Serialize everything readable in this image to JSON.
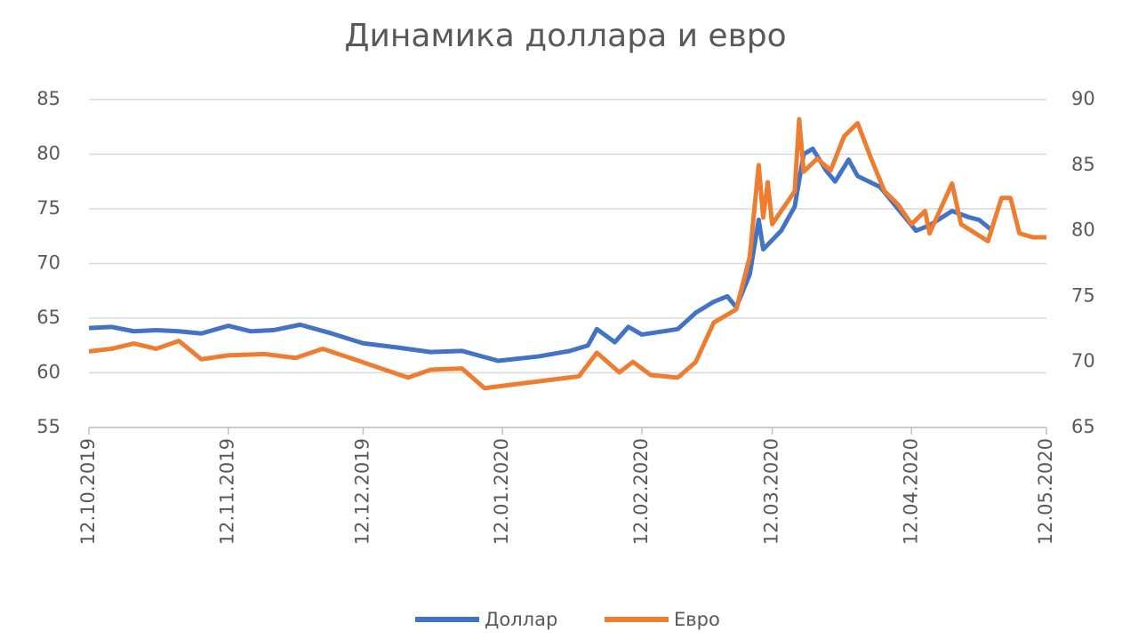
{
  "chart_data": {
    "type": "line",
    "title": "Динамика доллара и евро",
    "xlim": [
      "12.10.2019",
      "12.05.2020"
    ],
    "xticks": [
      "12.10.2019",
      "12.11.2019",
      "12.12.2019",
      "12.01.2020",
      "12.02.2020",
      "12.03.2020",
      "12.04.2020",
      "12.05.2020"
    ],
    "ylim": [
      55,
      85
    ],
    "yticks": [
      55,
      60,
      65,
      70,
      75,
      80,
      85
    ],
    "y2lim": [
      65,
      90
    ],
    "y2ticks": [
      65,
      70,
      75,
      80,
      85,
      90
    ],
    "grid": true,
    "legend": "bottom",
    "series": [
      {
        "name": "Доллар",
        "color": "#4472c4",
        "axis": "y",
        "x": [
          "12.10.2019",
          "17.10.2019",
          "22.10.2019",
          "27.10.2019",
          "01.11.2019",
          "06.11.2019",
          "12.11.2019",
          "17.11.2019",
          "22.11.2019",
          "28.11.2019",
          "05.12.2019",
          "12.12.2019",
          "20.12.2019",
          "27.12.2019",
          "03.01.2020",
          "11.01.2020",
          "20.01.2020",
          "27.01.2020",
          "31.01.2020",
          "02.02.2020",
          "06.02.2020",
          "09.02.2020",
          "12.02.2020",
          "20.02.2020",
          "24.02.2020",
          "28.02.2020",
          "02.03.2020",
          "04.03.2020",
          "07.03.2020",
          "09.03.2020",
          "10.03.2020",
          "14.03.2020",
          "17.03.2020",
          "19.03.2020",
          "21.03.2020",
          "24.03.2020",
          "26.03.2020",
          "29.03.2020",
          "31.03.2020",
          "05.04.2020",
          "09.04.2020",
          "13.04.2020",
          "16.04.2020",
          "21.04.2020",
          "25.04.2020",
          "27.04.2020",
          "30.04.2020"
        ],
        "values": [
          64.1,
          64.2,
          63.8,
          63.9,
          63.8,
          63.6,
          64.3,
          63.8,
          63.9,
          64.4,
          63.6,
          62.7,
          62.3,
          61.9,
          62.0,
          61.1,
          61.5,
          62.0,
          62.5,
          64.0,
          62.8,
          64.2,
          63.5,
          64.0,
          65.5,
          66.5,
          67.0,
          66.0,
          69.0,
          74.0,
          71.3,
          73.0,
          75.2,
          80.0,
          80.5,
          78.5,
          77.5,
          79.5,
          78.0,
          77.0,
          75.0,
          73.0,
          73.5,
          74.8,
          74.2,
          74.0,
          73.0
        ]
      },
      {
        "name": "Евро",
        "color": "#ed7d31",
        "axis": "y2",
        "x": [
          "12.10.2019",
          "17.10.2019",
          "22.10.2019",
          "27.10.2019",
          "01.11.2019",
          "06.11.2019",
          "12.11.2019",
          "20.11.2019",
          "27.11.2019",
          "03.12.2019",
          "10.12.2019",
          "16.12.2019",
          "22.12.2019",
          "27.12.2019",
          "03.01.2020",
          "08.01.2020",
          "15.01.2020",
          "22.01.2020",
          "29.01.2020",
          "02.02.2020",
          "07.02.2020",
          "10.02.2020",
          "14.02.2020",
          "20.02.2020",
          "24.02.2020",
          "28.02.2020",
          "04.03.2020",
          "07.03.2020",
          "09.03.2020",
          "10.03.2020",
          "11.03.2020",
          "12.03.2020",
          "15.03.2020",
          "17.03.2020",
          "18.03.2020",
          "19.03.2020",
          "22.03.2020",
          "25.03.2020",
          "28.03.2020",
          "31.03.2020",
          "03.04.2020",
          "06.04.2020",
          "09.04.2020",
          "12.04.2020",
          "15.04.2020",
          "16.04.2020",
          "21.04.2020",
          "23.04.2020",
          "29.04.2020",
          "02.05.2020",
          "04.05.2020",
          "06.05.2020",
          "09.05.2020",
          "12.05.2020"
        ],
        "values": [
          70.8,
          71.0,
          71.4,
          71.0,
          71.6,
          70.2,
          70.5,
          70.6,
          70.3,
          71.0,
          70.2,
          69.5,
          68.8,
          69.4,
          69.5,
          68.0,
          68.3,
          68.6,
          68.9,
          70.7,
          69.2,
          70.0,
          69.0,
          68.8,
          70.0,
          73.0,
          74.0,
          78.0,
          85.0,
          81.0,
          83.7,
          80.5,
          82.0,
          83.0,
          88.5,
          84.5,
          85.5,
          84.6,
          87.2,
          88.2,
          85.5,
          83.0,
          82.0,
          80.5,
          81.5,
          79.8,
          83.6,
          80.5,
          79.2,
          82.5,
          82.5,
          79.8,
          79.5,
          79.5
        ]
      }
    ]
  }
}
